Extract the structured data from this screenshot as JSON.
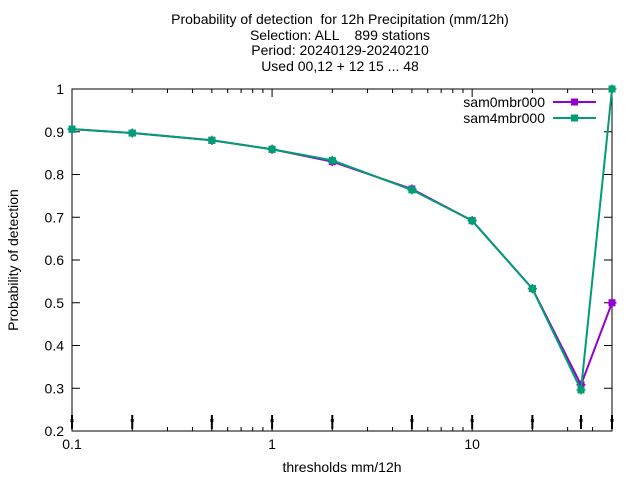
{
  "chart_data": {
    "type": "line",
    "title_lines": [
      "Probability of detection  for 12h Precipitation (mm/12h)",
      "Selection: ALL    899 stations",
      "Period: 20240129-20240210",
      "Used 00,12 + 12 15 ... 48"
    ],
    "xlabel": "thresholds mm/12h",
    "ylabel": "Probability of detection",
    "x_scale": "log",
    "xlim": [
      0.1,
      50
    ],
    "ylim": [
      0.2,
      1.0
    ],
    "x_ticks": [
      0.1,
      1,
      10
    ],
    "x_tick_labels": [
      "0.1",
      "1",
      "10"
    ],
    "y_ticks": [
      0.2,
      0.3,
      0.4,
      0.5,
      0.6,
      0.7,
      0.8,
      0.9,
      1.0
    ],
    "y_tick_labels": [
      "0.2",
      "0.3",
      "0.4",
      "0.5",
      "0.6",
      "0.7",
      "0.8",
      "0.9",
      "1"
    ],
    "legend_position": "top-right",
    "grid": false,
    "x": [
      0.1,
      0.2,
      0.5,
      1,
      2,
      5,
      10,
      20,
      35,
      50
    ],
    "series": [
      {
        "name": "sam0mbr000",
        "color": "#9400d3",
        "values": [
          0.906,
          0.897,
          0.88,
          0.859,
          0.83,
          0.766,
          0.692,
          0.533,
          0.308,
          0.5
        ]
      },
      {
        "name": "sam4mbr000",
        "color": "#009e73",
        "values": [
          0.906,
          0.897,
          0.88,
          0.859,
          0.833,
          0.764,
          0.692,
          0.533,
          0.296,
          1.0
        ]
      }
    ],
    "station_marker_x": [
      0.1,
      0.2,
      0.5,
      1,
      2,
      5,
      10,
      20,
      35,
      50
    ]
  }
}
